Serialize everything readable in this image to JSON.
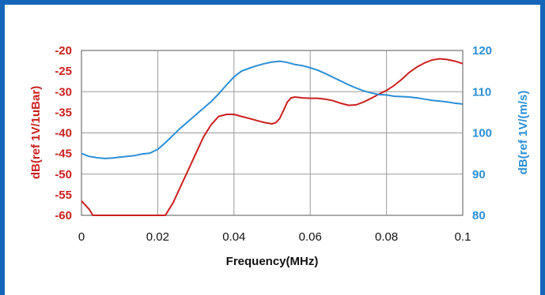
{
  "chart_data": {
    "type": "line",
    "xlabel": "Frequency(MHz)",
    "ylabel_left": "dB(ref  1V/1uBar)",
    "ylabel_right": "dB(ref 1V/(m/s)",
    "xlim": [
      0,
      0.1
    ],
    "ylim_left": [
      -60,
      -20
    ],
    "ylim_right": [
      80,
      120
    ],
    "x_ticks": [
      "0",
      "0.02",
      "0.04",
      "0.06",
      "0.08",
      "0.1"
    ],
    "y_ticks_left": [
      "-20",
      "-25",
      "-30",
      "-35",
      "-40",
      "-45",
      "-50",
      "-55",
      "-60"
    ],
    "y_ticks_right": [
      "120",
      "110",
      "100",
      "90",
      "80"
    ],
    "grid": true,
    "colors": {
      "left": "#cc1f1f",
      "right": "#2b8fd6",
      "frame": "#1565b8"
    },
    "series": [
      {
        "axis": "left",
        "color": "#cc1f1f",
        "x": [
          0,
          0.002,
          0.003,
          0.022,
          0.024,
          0.026,
          0.028,
          0.03,
          0.032,
          0.034,
          0.036,
          0.038,
          0.04,
          0.042,
          0.044,
          0.046,
          0.048,
          0.05,
          0.051,
          0.052,
          0.053,
          0.054,
          0.055,
          0.056,
          0.058,
          0.06,
          0.062,
          0.064,
          0.066,
          0.068,
          0.07,
          0.072,
          0.074,
          0.076,
          0.078,
          0.08,
          0.082,
          0.084,
          0.086,
          0.088,
          0.09,
          0.092,
          0.094,
          0.096,
          0.098,
          0.1
        ],
        "y": [
          -56.5,
          -58.5,
          -60,
          -60,
          -57,
          -53,
          -49,
          -45,
          -41,
          -38,
          -36,
          -35.5,
          -35.5,
          -36,
          -36.5,
          -37,
          -37.5,
          -37.8,
          -37.5,
          -36.5,
          -34.5,
          -32.5,
          -31.5,
          -31.3,
          -31.5,
          -31.6,
          -31.6,
          -31.8,
          -32.2,
          -32.8,
          -33.3,
          -33.2,
          -32.5,
          -31.6,
          -30.6,
          -29.7,
          -28.5,
          -27,
          -25.3,
          -24,
          -23,
          -22.3,
          -22,
          -22.2,
          -22.6,
          -23.2
        ]
      },
      {
        "axis": "right",
        "color": "#2b8fd6",
        "x": [
          0,
          0.002,
          0.004,
          0.006,
          0.008,
          0.01,
          0.012,
          0.014,
          0.016,
          0.018,
          0.019,
          0.02,
          0.022,
          0.024,
          0.026,
          0.028,
          0.03,
          0.032,
          0.034,
          0.036,
          0.038,
          0.04,
          0.042,
          0.044,
          0.046,
          0.048,
          0.05,
          0.052,
          0.054,
          0.056,
          0.058,
          0.06,
          0.062,
          0.064,
          0.066,
          0.068,
          0.07,
          0.072,
          0.074,
          0.076,
          0.078,
          0.08,
          0.082,
          0.084,
          0.086,
          0.088,
          0.09,
          0.092,
          0.094,
          0.096,
          0.098,
          0.1
        ],
        "y": [
          95,
          94.3,
          94,
          93.8,
          93.9,
          94.1,
          94.3,
          94.5,
          94.9,
          95.1,
          95.6,
          96,
          97.6,
          99.4,
          101.2,
          102.8,
          104.4,
          106,
          107.6,
          109.5,
          111.6,
          113.6,
          115,
          115.7,
          116.3,
          116.8,
          117.2,
          117.4,
          117.1,
          116.6,
          116.3,
          115.8,
          115.2,
          114.4,
          113.5,
          112.6,
          111.7,
          110.9,
          110.2,
          109.7,
          109.3,
          109.2,
          108.9,
          108.8,
          108.7,
          108.5,
          108.2,
          107.9,
          107.7,
          107.5,
          107.2,
          107
        ]
      }
    ]
  }
}
